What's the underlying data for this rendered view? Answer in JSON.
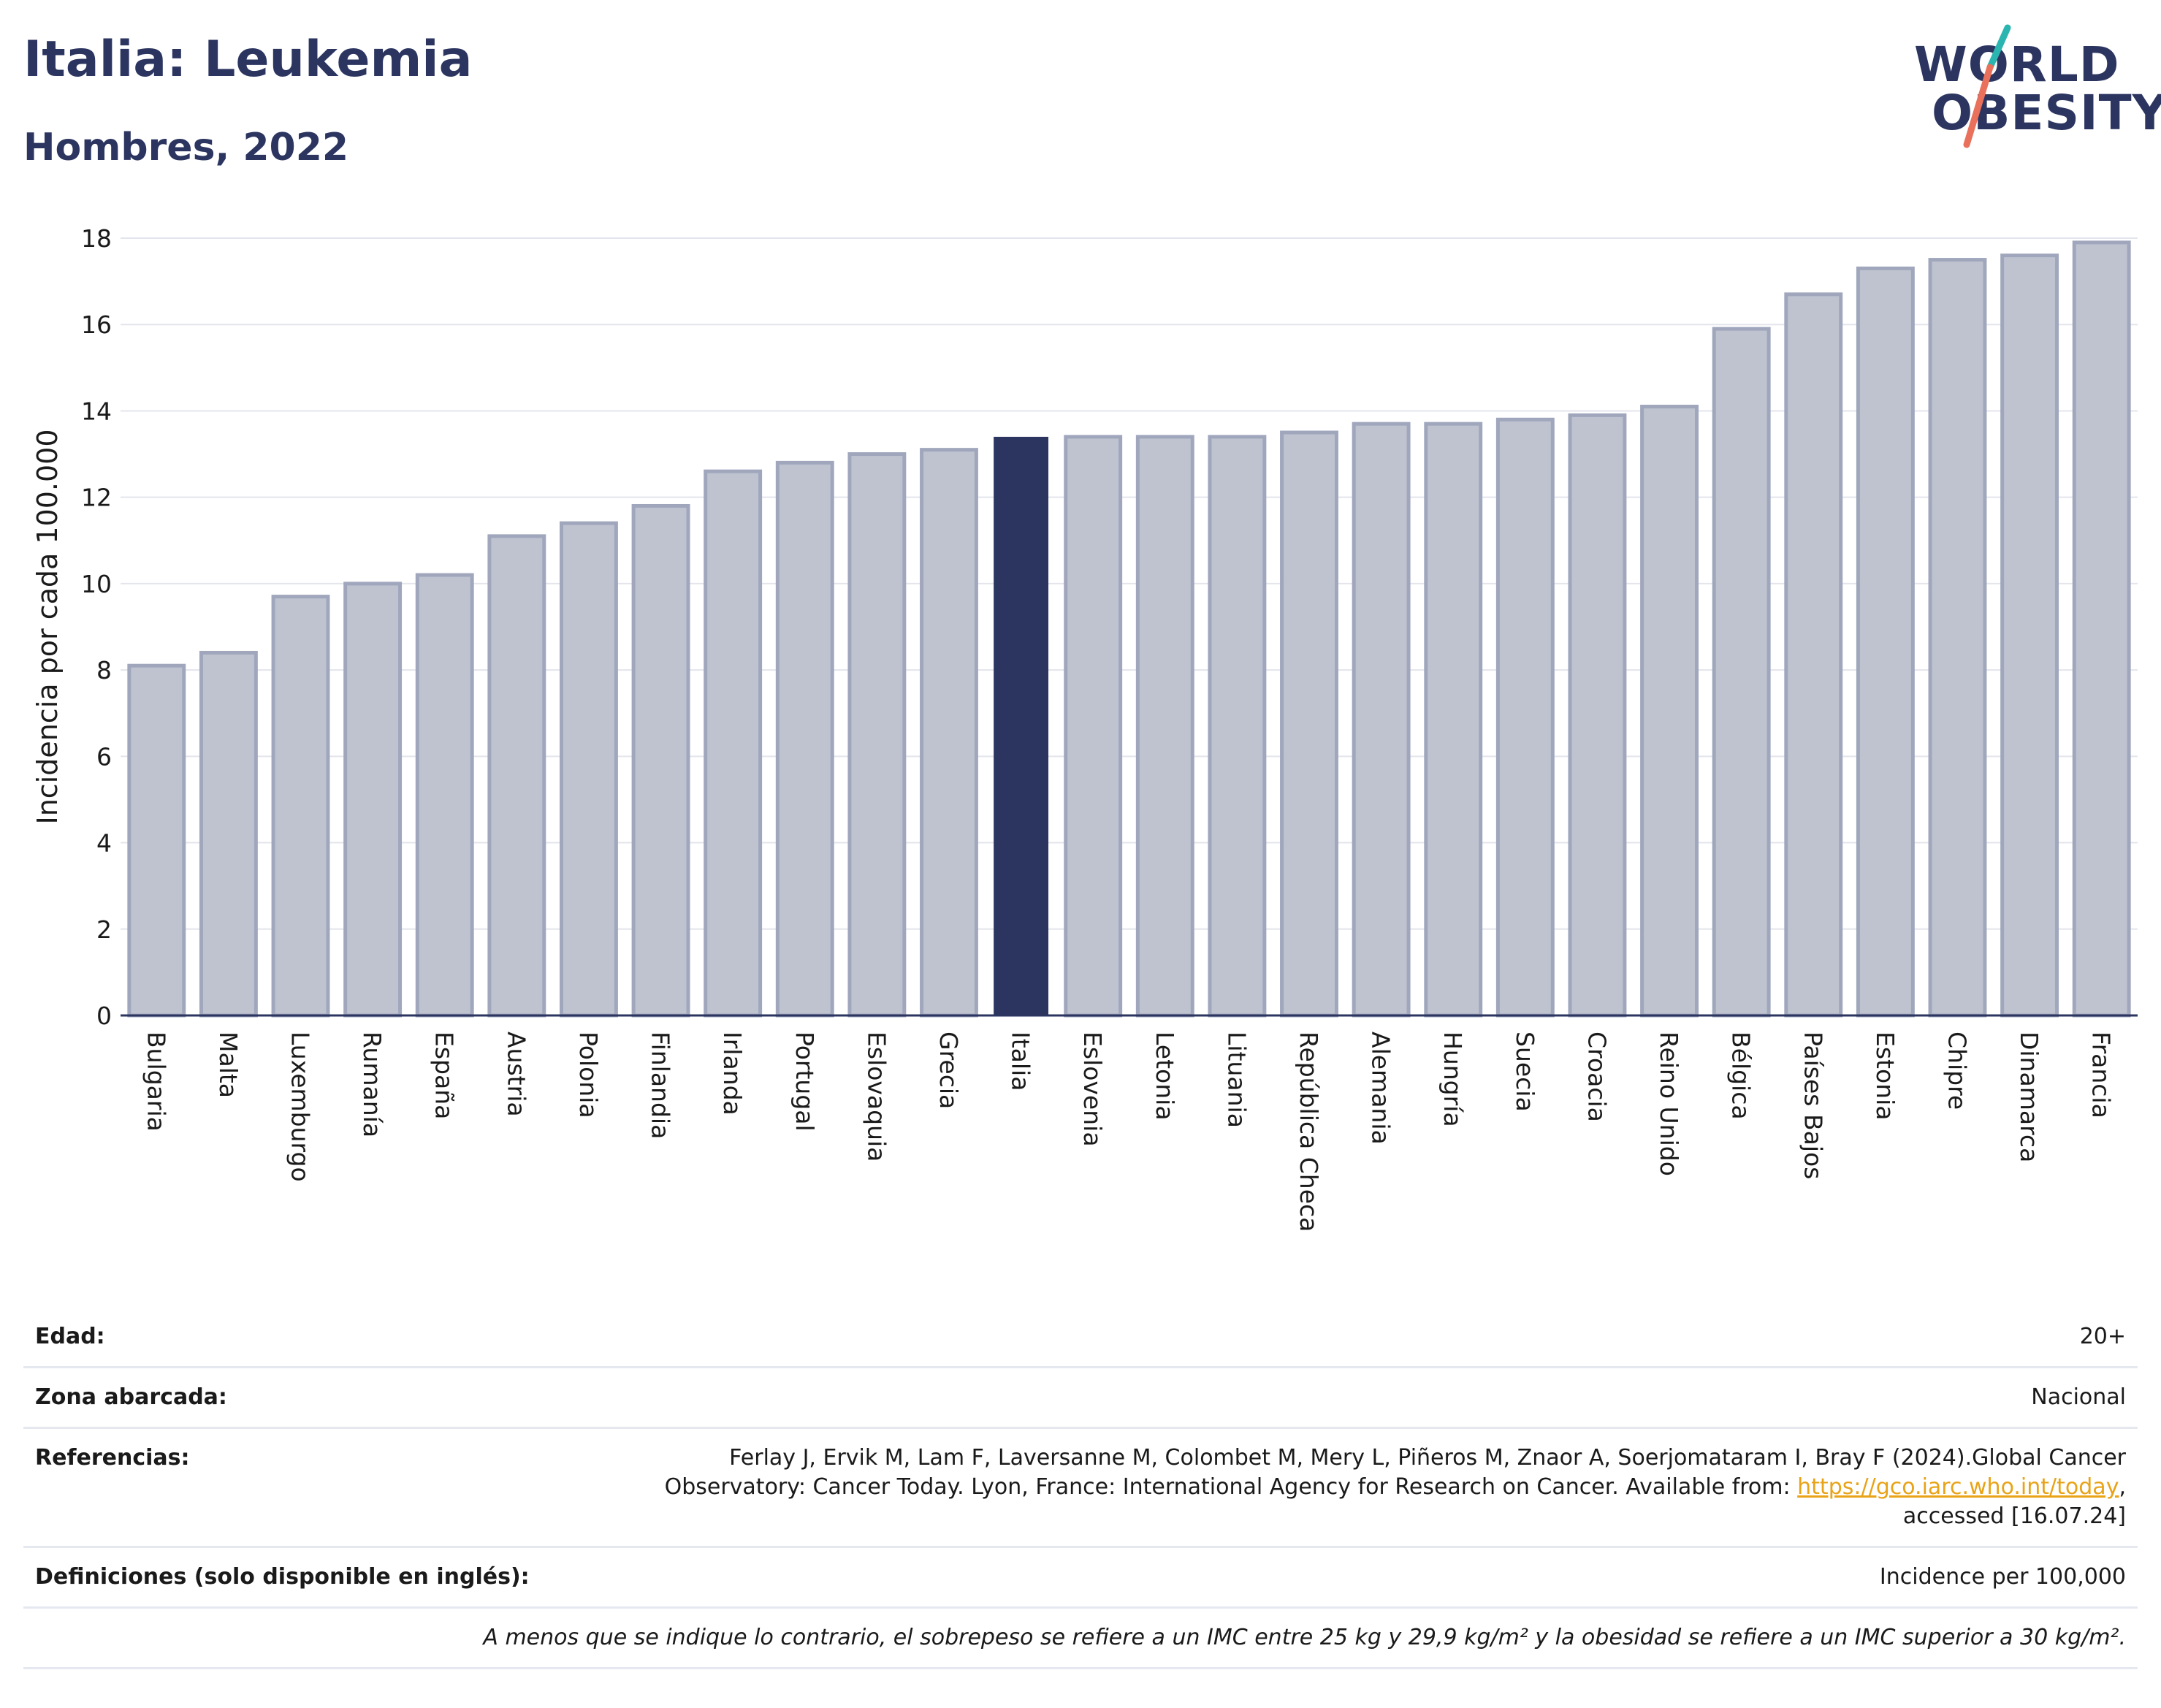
{
  "header": {
    "title": "Italia: Leukemia",
    "subtitle": "Hombres, 2022"
  },
  "logo": {
    "line1": "WORLD",
    "line2": "OBESITY",
    "colors": {
      "navy": "#2b3560",
      "teal": "#2bb5b0",
      "coral": "#e9705a"
    }
  },
  "chart_data": {
    "type": "bar",
    "ylabel": "Incidencia por cada 100.000",
    "xlabel": "",
    "ylim": [
      0,
      18
    ],
    "yticks": [
      0,
      2,
      4,
      6,
      8,
      10,
      12,
      14,
      16,
      18
    ],
    "grid": true,
    "highlight": "Italia",
    "colors": {
      "default": "#bfc3d0",
      "default_border": "#a0a7bd",
      "highlight": "#2b3560"
    },
    "categories": [
      "Bulgaria",
      "Malta",
      "Luxemburgo",
      "Rumanía",
      "España",
      "Austria",
      "Polonia",
      "Finlandia",
      "Irlanda",
      "Portugal",
      "Eslovaquia",
      "Grecia",
      "Italia",
      "Eslovenia",
      "Letonia",
      "Lituania",
      "República Checa",
      "Alemania",
      "Hungría",
      "Suecia",
      "Croacia",
      "Reino Unido",
      "Bélgica",
      "Países Bajos",
      "Estonia",
      "Chipre",
      "Dinamarca",
      "Francia"
    ],
    "values": [
      8.1,
      8.4,
      9.7,
      10.0,
      10.2,
      11.1,
      11.4,
      11.8,
      12.6,
      12.8,
      13.0,
      13.1,
      13.4,
      13.4,
      13.4,
      13.4,
      13.5,
      13.7,
      13.7,
      13.8,
      13.9,
      14.1,
      15.9,
      16.7,
      17.3,
      17.5,
      17.6,
      17.9
    ]
  },
  "info": {
    "edad_label": "Edad:",
    "edad_value": "20+",
    "zona_label": "Zona abarcada:",
    "zona_value": "Nacional",
    "ref_label": "Referencias:",
    "ref_text_1": "Ferlay J, Ervik M, Lam F, Laversanne M, Colombet M, Mery L, Piñeros M, Znaor A, Soerjomataram I, Bray F (2024).Global Cancer Observatory: Cancer Today. Lyon, France: International Agency for Research on Cancer. Available from: ",
    "ref_link": "https://gco.iarc.who.int/today",
    "ref_text_2": ", accessed [16.07.24]",
    "def_label": "Definiciones (solo disponible en inglés):",
    "def_value": "Incidence per 100,000",
    "note": "A menos que se indique lo contrario, el sobrepeso se refiere a un IMC entre 25 kg y 29,9 kg/m² y la obesidad se refiere a un IMC superior a 30 kg/m²."
  }
}
